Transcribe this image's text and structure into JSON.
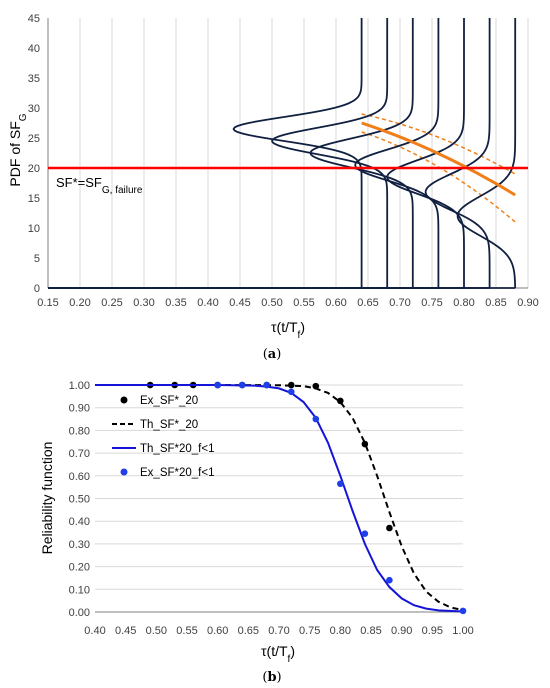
{
  "chart_data": [
    {
      "type": "line",
      "panel_label_pre": "(",
      "panel_label": "a",
      "panel_label_post": ")",
      "ylabel_main": "PDF of SF",
      "ylabel_sub": "G",
      "xlabel_main": "τ(t/T",
      "xlabel_sub": "f",
      "xlabel_close": ")",
      "xlim": [
        0.15,
        0.9
      ],
      "ylim": [
        0,
        45
      ],
      "xticks": [
        "0.15",
        "0.20",
        "0.25",
        "0.30",
        "0.35",
        "0.40",
        "0.45",
        "0.50",
        "0.55",
        "0.60",
        "0.65",
        "0.70",
        "0.75",
        "0.80",
        "0.85",
        "0.90"
      ],
      "yticks": [
        "0",
        "5",
        "10",
        "15",
        "20",
        "25",
        "30",
        "35",
        "40",
        "45"
      ],
      "grid": "vertical",
      "threshold": {
        "y": 20,
        "color": "#ff0000",
        "label_main": "SF*=SF",
        "label_sub": "G, failure"
      },
      "pdf_curves": [
        {
          "tau": 0.64,
          "mean": 26.5,
          "sd": 2.0,
          "peak_x": 0.44
        },
        {
          "tau": 0.68,
          "mean": 24.5,
          "sd": 2.2,
          "peak_x": 0.5
        },
        {
          "tau": 0.72,
          "mean": 22.5,
          "sd": 2.4,
          "peak_x": 0.56
        },
        {
          "tau": 0.76,
          "mean": 20.5,
          "sd": 2.6,
          "peak_x": 0.63
        },
        {
          "tau": 0.8,
          "mean": 18.5,
          "sd": 2.8,
          "peak_x": 0.68
        },
        {
          "tau": 0.84,
          "mean": 16.0,
          "sd": 3.0,
          "peak_x": 0.74
        },
        {
          "tau": 0.88,
          "mean": 12.0,
          "sd": 3.3,
          "peak_x": 0.79
        }
      ],
      "mean_line": {
        "color": "#f07f1a",
        "x": [
          0.64,
          0.88
        ],
        "y": [
          27.5,
          15.5
        ]
      },
      "band_upper": {
        "color": "#f07f1a",
        "x": [
          0.64,
          0.88
        ],
        "y": [
          29.0,
          19.0
        ]
      },
      "band_lower": {
        "color": "#f07f1a",
        "x": [
          0.64,
          0.88
        ],
        "y": [
          26.0,
          11.0
        ]
      }
    },
    {
      "type": "line",
      "panel_label_pre": "(",
      "panel_label": "b",
      "panel_label_post": ")",
      "ylabel": "Reliability function",
      "xlabel_main": "τ(t/T",
      "xlabel_sub": "f",
      "xlabel_close": ")",
      "xlim": [
        0.4,
        1.0
      ],
      "ylim": [
        0,
        1.0
      ],
      "xticks": [
        "0.40",
        "0.45",
        "0.50",
        "0.55",
        "0.60",
        "0.65",
        "0.70",
        "0.75",
        "0.80",
        "0.85",
        "0.90",
        "0.95",
        "1.00"
      ],
      "yticks": [
        "0.00",
        "0.10",
        "0.20",
        "0.30",
        "0.40",
        "0.50",
        "0.60",
        "0.70",
        "0.80",
        "0.90",
        "1.00"
      ],
      "grid": "horizontal",
      "legend_position": "top-left",
      "series": [
        {
          "name": "Ex_SF*_20",
          "kind": "markers",
          "color": "#000000",
          "x": [
            0.49,
            0.53,
            0.56,
            0.6,
            0.64,
            0.68,
            0.72,
            0.76,
            0.8,
            0.84,
            0.88
          ],
          "y": [
            1.0,
            1.0,
            1.0,
            1.0,
            1.0,
            1.0,
            1.0,
            0.995,
            0.93,
            0.74,
            0.37
          ]
        },
        {
          "name": "Th_SF*_20",
          "kind": "dashed",
          "color": "#000000",
          "x": [
            0.4,
            0.6,
            0.7,
            0.74,
            0.76,
            0.78,
            0.8,
            0.82,
            0.84,
            0.86,
            0.88,
            0.9,
            0.92,
            0.94,
            0.96,
            0.98,
            1.0
          ],
          "y": [
            1.0,
            1.0,
            0.999,
            0.995,
            0.985,
            0.965,
            0.925,
            0.855,
            0.745,
            0.6,
            0.44,
            0.29,
            0.17,
            0.09,
            0.045,
            0.02,
            0.008
          ]
        },
        {
          "name": "Th_SF*20_f<1",
          "kind": "solid",
          "color": "#1515d8",
          "x": [
            0.4,
            0.6,
            0.66,
            0.68,
            0.7,
            0.72,
            0.74,
            0.76,
            0.78,
            0.8,
            0.82,
            0.84,
            0.86,
            0.88,
            0.9,
            0.92,
            0.94,
            0.96,
            1.0
          ],
          "y": [
            1.0,
            1.0,
            0.997,
            0.993,
            0.985,
            0.965,
            0.925,
            0.855,
            0.745,
            0.6,
            0.445,
            0.3,
            0.185,
            0.11,
            0.06,
            0.03,
            0.015,
            0.007,
            0.002
          ]
        },
        {
          "name": "Ex_SF*20_f<1",
          "kind": "markers",
          "color": "#1f3fe8",
          "x": [
            0.6,
            0.64,
            0.68,
            0.72,
            0.76,
            0.8,
            0.84,
            0.88,
            1.0
          ],
          "y": [
            1.0,
            1.0,
            1.0,
            0.97,
            0.85,
            0.565,
            0.345,
            0.14,
            0.005
          ]
        }
      ]
    }
  ]
}
